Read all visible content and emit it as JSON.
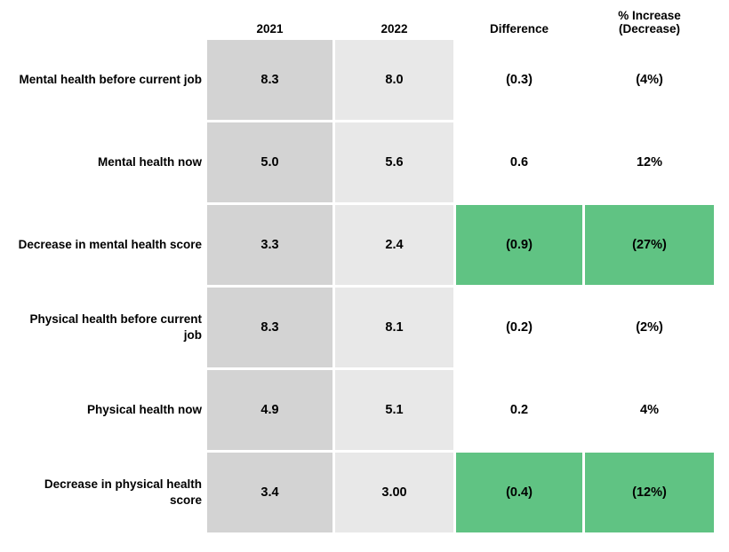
{
  "chart_data": {
    "type": "table",
    "columns": [
      "2021",
      "2022",
      "Difference",
      "% Increase (Decrease)"
    ],
    "rows": [
      {
        "label": "Mental health before current job",
        "values": [
          "8.3",
          "8.0",
          "(0.3)",
          "(4%)"
        ],
        "highlight": false
      },
      {
        "label": "Mental health now",
        "values": [
          "5.0",
          "5.6",
          "0.6",
          "12%"
        ],
        "highlight": false
      },
      {
        "label": "Decrease in mental health score",
        "values": [
          "3.3",
          "2.4",
          "(0.9)",
          "(27%)"
        ],
        "highlight": true
      },
      {
        "label": "Physical health before current job",
        "values": [
          "8.3",
          "8.1",
          "(0.2)",
          "(2%)"
        ],
        "highlight": false
      },
      {
        "label": "Physical health now",
        "values": [
          "4.9",
          "5.1",
          "0.2",
          "4%"
        ],
        "highlight": false
      },
      {
        "label": "Decrease in physical health score",
        "values": [
          "3.4",
          "3.00",
          "(0.4)",
          "(12%)"
        ],
        "highlight": true
      }
    ],
    "layout_hints": {
      "column_2021_fill": "#d3d3d3",
      "column_2022_fill": "#e8e8e8",
      "highlight_fill_difference_and_pct": "#60c383",
      "negative_values_shown_in_parentheses": true
    }
  },
  "header": {
    "c2021": "2021",
    "c2022": "2022",
    "difference": "Difference",
    "pct": "% Increase\n(Decrease)"
  },
  "labels_display": [
    "Mental health before current job",
    "Mental health now",
    "Decrease in mental health score",
    "Physical health before current\njob",
    "Physical health now",
    "Decrease in physical health\nscore"
  ],
  "colors": {
    "col_2021_bg": "#d3d3d3",
    "col_2022_bg": "#e8e8e8",
    "highlight_bg": "#60c383",
    "text": "#000000",
    "background": "#ffffff"
  }
}
